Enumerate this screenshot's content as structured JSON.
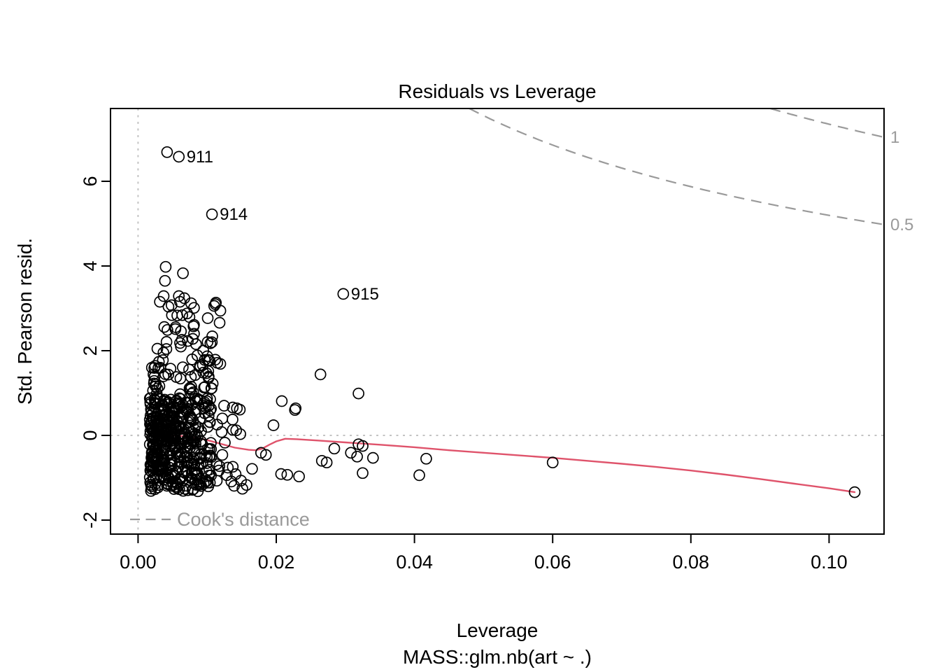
{
  "colors": {
    "points": "#000000",
    "smooth": "#DF536B",
    "contour": "#9a9a9a",
    "contour_label": "#9a9a9a",
    "reference": "#c3c3c3",
    "legend_text": "#9a9a9a",
    "text": "#000000"
  },
  "chart_data": {
    "type": "scatter",
    "title": "Residuals vs Leverage",
    "xlabel": "Leverage",
    "subtitle": "MASS::glm.nb(art ~ .)",
    "ylabel": "Std. Pearson resid.",
    "legend_label": "Cook's distance",
    "xlim": [
      -0.0042,
      0.108
    ],
    "ylim": [
      -2.33,
      7.72
    ],
    "grid": false,
    "x_ticks": [
      0,
      0.02,
      0.04,
      0.06,
      0.08,
      0.1
    ],
    "x_tick_labels": [
      "0.00",
      "0.02",
      "0.04",
      "0.06",
      "0.08",
      "0.10"
    ],
    "y_ticks": [
      -2,
      0,
      2,
      4,
      6
    ],
    "y_tick_labels": [
      "-2",
      "0",
      "2",
      "4",
      "6"
    ],
    "reference_lines": {
      "h": 0,
      "v": 0
    },
    "cook_contours": {
      "p": 6,
      "levels": [
        0.5,
        1
      ],
      "labels": [
        "0.5",
        "1"
      ]
    },
    "labeled_points": [
      {
        "label": "911",
        "leverage": 0.0059,
        "residual": 6.58
      },
      {
        "label": "914",
        "leverage": 0.0107,
        "residual": 5.22
      },
      {
        "label": "915",
        "leverage": 0.0297,
        "residual": 3.34
      }
    ],
    "points": [
      [
        0.0042,
        6.69
      ],
      [
        0.004,
        3.98
      ],
      [
        0.0065,
        3.83
      ],
      [
        0.0039,
        3.65
      ],
      [
        0.0037,
        3.29
      ],
      [
        0.0059,
        3.29
      ],
      [
        0.0067,
        3.24
      ],
      [
        0.0044,
        3.04
      ],
      [
        0.0071,
        2.88
      ],
      [
        0.0049,
        2.84
      ],
      [
        0.0064,
        2.84
      ],
      [
        0.0118,
        2.66
      ],
      [
        0.0081,
        2.61
      ],
      [
        0.0038,
        2.56
      ],
      [
        0.0054,
        2.51
      ],
      [
        0.0062,
        2.46
      ],
      [
        0.0081,
        2.4
      ],
      [
        0.0119,
        1.69
      ],
      [
        0.0099,
        1.47
      ],
      [
        0.0106,
        1.11
      ],
      [
        0.0137,
        0.66
      ],
      [
        0.0143,
        0.64
      ],
      [
        0.0122,
        0.4
      ],
      [
        0.0104,
        0.31
      ],
      [
        0.0196,
        0.24
      ],
      [
        0.0121,
        0.08
      ],
      [
        0.0137,
        0.13
      ],
      [
        0.0142,
        0.12
      ],
      [
        0.0148,
        0.03
      ],
      [
        0.0208,
        0.81
      ],
      [
        0.0228,
        0.64
      ],
      [
        0.0227,
        0.6
      ],
      [
        0.0264,
        1.44
      ],
      [
        0.0319,
        0.99
      ],
      [
        0.0122,
        -0.46
      ],
      [
        0.013,
        -0.76
      ],
      [
        0.0137,
        -0.74
      ],
      [
        0.0117,
        -0.83
      ],
      [
        0.0165,
        -0.79
      ],
      [
        0.0114,
        -1.07
      ],
      [
        0.0135,
        -1.09
      ],
      [
        0.0157,
        -1.17
      ],
      [
        0.0139,
        -1.19
      ],
      [
        0.0151,
        -1.26
      ],
      [
        0.0178,
        -0.41
      ],
      [
        0.0185,
        -0.46
      ],
      [
        0.0207,
        -0.91
      ],
      [
        0.0216,
        -0.93
      ],
      [
        0.0233,
        -0.97
      ],
      [
        0.0284,
        -0.31
      ],
      [
        0.0319,
        -0.21
      ],
      [
        0.0325,
        -0.25
      ],
      [
        0.0308,
        -0.41
      ],
      [
        0.0317,
        -0.5
      ],
      [
        0.034,
        -0.53
      ],
      [
        0.0273,
        -0.64
      ],
      [
        0.0266,
        -0.6
      ],
      [
        0.0325,
        -0.89
      ],
      [
        0.0417,
        -0.55
      ],
      [
        0.0407,
        -0.94
      ],
      [
        0.06,
        -0.64
      ],
      [
        0.1037,
        -1.34
      ]
    ],
    "cluster": {
      "seed": 77,
      "bands": [
        {
          "count": 330,
          "lev_min": 0.0017,
          "lev_max": 0.0107,
          "lev_pow": 1.6,
          "res_min": -1.32,
          "res_max": 0.88
        },
        {
          "count": 110,
          "lev_min": 0.002,
          "lev_max": 0.009,
          "lev_pow": 1.5,
          "res_min": -1.05,
          "res_max": 0.45
        },
        {
          "count": 70,
          "lev_min": 0.002,
          "lev_max": 0.0115,
          "lev_pow": 1.4,
          "res_min": 0.85,
          "res_max": 2.3
        },
        {
          "count": 16,
          "lev_min": 0.003,
          "lev_max": 0.012,
          "lev_pow": 1.0,
          "res_min": 2.3,
          "res_max": 3.25
        },
        {
          "count": 12,
          "lev_min": 0.01,
          "lev_max": 0.015,
          "lev_pow": 1.0,
          "res_min": -1.25,
          "res_max": 0.75
        }
      ]
    },
    "smooth_line": [
      [
        0.0018,
        0.06
      ],
      [
        0.004,
        0.01
      ],
      [
        0.006,
        -0.01
      ],
      [
        0.008,
        -0.04
      ],
      [
        0.01,
        -0.11
      ],
      [
        0.012,
        -0.2
      ],
      [
        0.014,
        -0.29
      ],
      [
        0.016,
        -0.34
      ],
      [
        0.017,
        -0.35
      ],
      [
        0.018,
        -0.31
      ],
      [
        0.019,
        -0.22
      ],
      [
        0.02,
        -0.14
      ],
      [
        0.0213,
        -0.08
      ],
      [
        0.023,
        -0.09
      ],
      [
        0.026,
        -0.12
      ],
      [
        0.03,
        -0.165
      ],
      [
        0.035,
        -0.22
      ],
      [
        0.04,
        -0.28
      ],
      [
        0.045,
        -0.35
      ],
      [
        0.05,
        -0.41
      ],
      [
        0.055,
        -0.47
      ],
      [
        0.06,
        -0.53
      ],
      [
        0.065,
        -0.6
      ],
      [
        0.07,
        -0.67
      ],
      [
        0.075,
        -0.745
      ],
      [
        0.08,
        -0.83
      ],
      [
        0.085,
        -0.925
      ],
      [
        0.09,
        -1.03
      ],
      [
        0.095,
        -1.14
      ],
      [
        0.1,
        -1.25
      ],
      [
        0.1037,
        -1.34
      ]
    ]
  }
}
